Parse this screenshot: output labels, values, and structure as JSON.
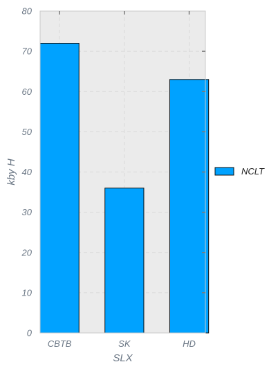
{
  "chart_data": {
    "type": "bar",
    "categories": [
      "CBTB",
      "SK",
      "HD"
    ],
    "series": [
      {
        "name": "NCLT",
        "values": [
          72,
          36,
          63
        ],
        "color": "#00a2ff"
      }
    ],
    "xlabel": "SLX",
    "ylabel": "kby H",
    "ylim": [
      0,
      80
    ],
    "yticks": [
      0,
      10,
      20,
      30,
      40,
      50,
      60,
      70,
      80
    ],
    "grid": true,
    "legend_position": "right",
    "plot_background": "#ebebeb"
  }
}
